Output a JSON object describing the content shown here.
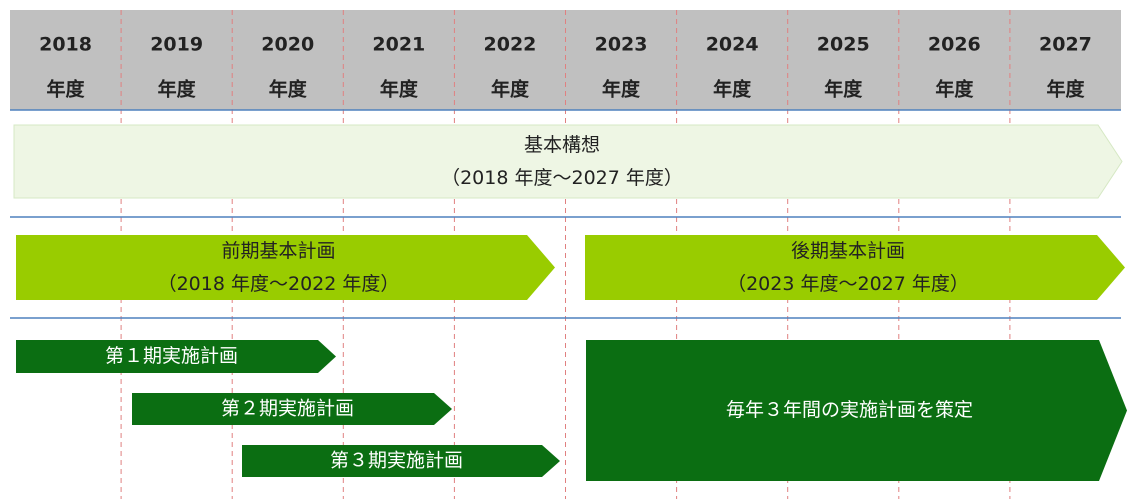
{
  "header": {
    "years": [
      {
        "year": "2018",
        "unit": "年度"
      },
      {
        "year": "2019",
        "unit": "年度"
      },
      {
        "year": "2020",
        "unit": "年度"
      },
      {
        "year": "2021",
        "unit": "年度"
      },
      {
        "year": "2022",
        "unit": "年度"
      },
      {
        "year": "2023",
        "unit": "年度"
      },
      {
        "year": "2024",
        "unit": "年度"
      },
      {
        "year": "2025",
        "unit": "年度"
      },
      {
        "year": "2026",
        "unit": "年度"
      },
      {
        "year": "2027",
        "unit": "年度"
      }
    ]
  },
  "bars": [
    {
      "label": "基本構想",
      "period": "（2018 年度～2027 年度）"
    },
    {
      "label": "前期基本計画",
      "period": "（2018 年度～2022 年度）"
    },
    {
      "label": "後期基本計画",
      "period": "（2023 年度～2027 年度）"
    },
    {
      "label": "第１期実施計画"
    },
    {
      "label": "第２期実施計画"
    },
    {
      "label": "第３期実施計画"
    },
    {
      "label": "毎年３年間の実施計画を策定"
    }
  ]
}
